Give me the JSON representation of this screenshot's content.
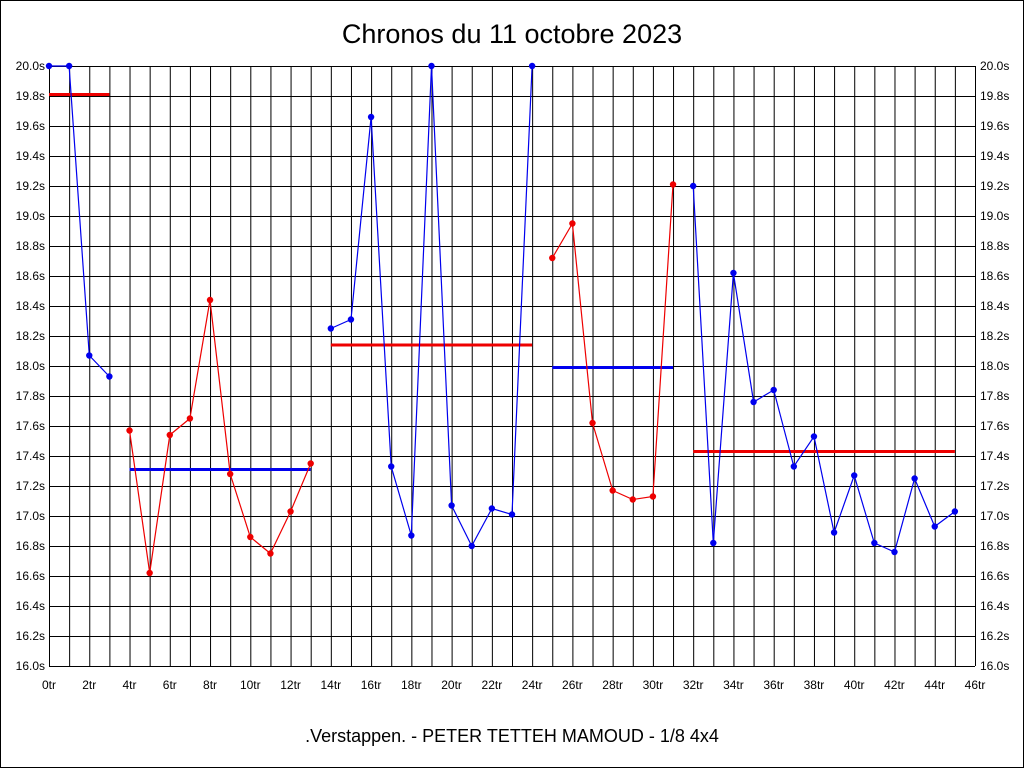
{
  "chart_data": {
    "type": "line",
    "title": "Chronos du 11 octobre 2023",
    "caption": ".Verstappen. - PETER TETTEH MAMOUD - 1/8 4x4",
    "xlabel": "",
    "ylabel": "",
    "xlim": [
      0,
      46
    ],
    "ylim": [
      16.0,
      20.0
    ],
    "grid": true,
    "x_tick_labels": [
      "0tr",
      "2tr",
      "4tr",
      "6tr",
      "8tr",
      "10tr",
      "12tr",
      "14tr",
      "16tr",
      "18tr",
      "20tr",
      "22tr",
      "24tr",
      "26tr",
      "28tr",
      "30tr",
      "32tr",
      "34tr",
      "36tr",
      "38tr",
      "40tr",
      "42tr",
      "44tr",
      "46tr"
    ],
    "y_tick_labels": [
      "16.0s",
      "16.2s",
      "16.4s",
      "16.6s",
      "16.8s",
      "17.0s",
      "17.2s",
      "17.4s",
      "17.6s",
      "17.8s",
      "18.0s",
      "18.2s",
      "18.4s",
      "18.6s",
      "18.8s",
      "19.0s",
      "19.2s",
      "19.4s",
      "19.6s",
      "19.8s",
      "20.0s"
    ],
    "series": [
      {
        "color": "#0000ee",
        "x": [
          0,
          1,
          2,
          3
        ],
        "y": [
          20.0,
          20.0,
          18.07,
          17.93
        ]
      },
      {
        "color": "#ee0000",
        "x": [
          4,
          5,
          6,
          7,
          8,
          9,
          10,
          11,
          12,
          13
        ],
        "y": [
          17.57,
          16.62,
          17.54,
          17.65,
          18.44,
          17.28,
          16.86,
          16.75,
          17.03,
          17.35
        ]
      },
      {
        "color": "#0000ee",
        "x": [
          14,
          15,
          16,
          17,
          18,
          19,
          20,
          21,
          22,
          23,
          24
        ],
        "y": [
          18.25,
          18.31,
          19.66,
          17.33,
          16.87,
          20.0,
          17.07,
          16.8,
          17.05,
          17.01,
          20.0
        ]
      },
      {
        "color": "#ee0000",
        "x": [
          25,
          26,
          27,
          28,
          29,
          30,
          31
        ],
        "y": [
          18.72,
          18.95,
          17.62,
          17.17,
          17.11,
          17.13,
          19.21
        ]
      },
      {
        "color": "#0000ee",
        "x": [
          32,
          33,
          34,
          35,
          36,
          37,
          38,
          39,
          40,
          41,
          42,
          43,
          44,
          45
        ],
        "y": [
          19.2,
          16.82,
          18.62,
          17.76,
          17.84,
          17.33,
          17.53,
          16.89,
          17.27,
          16.82,
          16.76,
          17.25,
          16.93,
          17.03
        ]
      }
    ],
    "averages": [
      {
        "color": "#ee0000",
        "x_start": 0,
        "x_end": 3,
        "y": 19.81
      },
      {
        "color": "#0000ee",
        "x_start": 4,
        "x_end": 13,
        "y": 17.31
      },
      {
        "color": "#ee0000",
        "x_start": 14,
        "x_end": 24,
        "y": 18.14
      },
      {
        "color": "#0000ee",
        "x_start": 25,
        "x_end": 31,
        "y": 17.99
      },
      {
        "color": "#ee0000",
        "x_start": 32,
        "x_end": 45,
        "y": 17.43
      }
    ]
  }
}
